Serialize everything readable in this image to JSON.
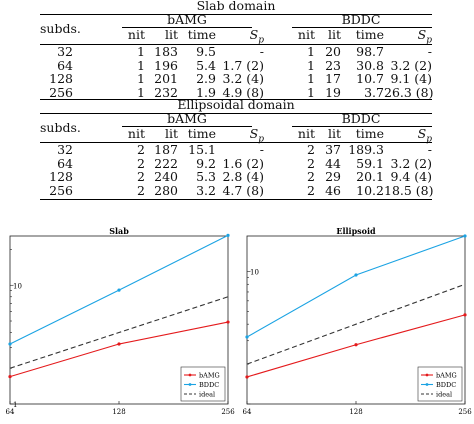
{
  "tables": [
    {
      "title": "Slab domain",
      "subds_header": "subds.",
      "group_a": "bAMG",
      "group_b": "BDDC",
      "cols": [
        "nit",
        "lit",
        "time",
        "S_p"
      ],
      "rows": [
        {
          "subds": "32",
          "a_nit": "1",
          "a_lit": "183",
          "a_time": "9.5",
          "a_sp": "-",
          "b_nit": "1",
          "b_lit": "20",
          "b_time": "98.7",
          "b_sp": "-"
        },
        {
          "subds": "64",
          "a_nit": "1",
          "a_lit": "196",
          "a_time": "5.4",
          "a_sp": "1.7 (2)",
          "b_nit": "1",
          "b_lit": "23",
          "b_time": "30.8",
          "b_sp": "3.2 (2)"
        },
        {
          "subds": "128",
          "a_nit": "1",
          "a_lit": "201",
          "a_time": "2.9",
          "a_sp": "3.2 (4)",
          "b_nit": "1",
          "b_lit": "17",
          "b_time": "10.7",
          "b_sp": "9.1 (4)"
        },
        {
          "subds": "256",
          "a_nit": "1",
          "a_lit": "232",
          "a_time": "1.9",
          "a_sp": "4.9 (8)",
          "b_nit": "1",
          "b_lit": "19",
          "b_time": "3.7",
          "b_sp": "26.3 (8)"
        }
      ]
    },
    {
      "title": "Ellipsoidal domain",
      "subds_header": "subds.",
      "group_a": "bAMG",
      "group_b": "BDDC",
      "cols": [
        "nit",
        "lit",
        "time",
        "S_p"
      ],
      "rows": [
        {
          "subds": "32",
          "a_nit": "2",
          "a_lit": "187",
          "a_time": "15.1",
          "a_sp": "-",
          "b_nit": "2",
          "b_lit": "37",
          "b_time": "189.3",
          "b_sp": "-"
        },
        {
          "subds": "64",
          "a_nit": "2",
          "a_lit": "222",
          "a_time": "9.2",
          "a_sp": "1.6 (2)",
          "b_nit": "2",
          "b_lit": "44",
          "b_time": "59.1",
          "b_sp": "3.2 (2)"
        },
        {
          "subds": "128",
          "a_nit": "2",
          "a_lit": "240",
          "a_time": "5.3",
          "a_sp": "2.8 (4)",
          "b_nit": "2",
          "b_lit": "29",
          "b_time": "20.1",
          "b_sp": "9.4 (4)"
        },
        {
          "subds": "256",
          "a_nit": "2",
          "a_lit": "280",
          "a_time": "3.2",
          "a_sp": "4.7 (8)",
          "b_nit": "2",
          "b_lit": "46",
          "b_time": "10.2",
          "b_sp": "18.5 (8)"
        }
      ]
    }
  ],
  "chart_data": [
    {
      "type": "line",
      "title": "Slab",
      "xscale": "log2",
      "yscale": "log",
      "x": [
        64,
        128,
        256
      ],
      "xticks": [
        "64",
        "128",
        "256"
      ],
      "yticks": [
        "1",
        "10"
      ],
      "ylim": [
        1,
        26
      ],
      "xlim": [
        64,
        256
      ],
      "grid": false,
      "legend_placement": "bottom-right",
      "series": [
        {
          "name": "bAMG",
          "values": [
            1.7,
            3.2,
            4.9
          ],
          "color": "#e41a1c",
          "style": "solid",
          "marker": true
        },
        {
          "name": "BDDC",
          "values": [
            3.2,
            9.1,
            26.3
          ],
          "color": "#1ba3e3",
          "style": "solid",
          "marker": true
        },
        {
          "name": "ideal",
          "values": [
            2,
            4,
            8
          ],
          "color": "#333333",
          "style": "dashed",
          "marker": false
        }
      ]
    },
    {
      "type": "line",
      "title": "Ellipsoid",
      "xscale": "log2",
      "yscale": "log",
      "x": [
        64,
        128,
        256
      ],
      "xticks": [
        "64",
        "128",
        "256"
      ],
      "yticks": [
        "10"
      ],
      "ylim": [
        1,
        18.5
      ],
      "xlim": [
        64,
        256
      ],
      "grid": false,
      "legend_placement": "bottom-right",
      "series": [
        {
          "name": "bAMG",
          "values": [
            1.6,
            2.8,
            4.7
          ],
          "color": "#e41a1c",
          "style": "solid",
          "marker": true
        },
        {
          "name": "BDDC",
          "values": [
            3.2,
            9.4,
            18.5
          ],
          "color": "#1ba3e3",
          "style": "solid",
          "marker": true
        },
        {
          "name": "ideal",
          "values": [
            2,
            4,
            8
          ],
          "color": "#333333",
          "style": "dashed",
          "marker": false
        }
      ]
    }
  ]
}
